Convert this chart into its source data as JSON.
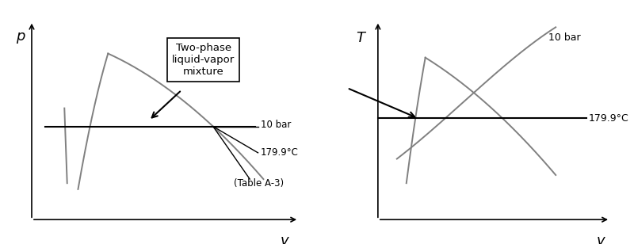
{
  "fig_width": 8.0,
  "fig_height": 3.08,
  "dpi": 100,
  "bg_color": "#ffffff",
  "curve_color": "#808080",
  "line_color": "#000000",
  "left": {
    "ylabel": "p",
    "xlabel": "v",
    "box_text": "Two-phase\nliquid-vapor\nmixture",
    "label_10bar": "10 bar",
    "label_179": "179.9°C",
    "label_tableA3": "(Table A-3)"
  },
  "right": {
    "ylabel": "T",
    "xlabel": "v",
    "label_10bar": "10 bar",
    "label_179": "179.9°C"
  }
}
